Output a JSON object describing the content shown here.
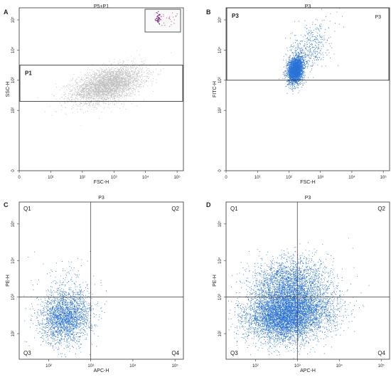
{
  "chart_data": [
    {
      "panel": "A",
      "type": "scatter",
      "title": "P5+P1",
      "xlabel": "FSC-H",
      "ylabel": "SSC-H",
      "x_scale": "log",
      "y_scale": "log",
      "xlim": [
        0,
        5.2
      ],
      "ylim": [
        0,
        5.4
      ],
      "x_ticks": [
        {
          "label": "0",
          "value": 0
        },
        {
          "label": "10¹",
          "value": 1
        },
        {
          "label": "10²",
          "value": 2
        },
        {
          "label": "10³",
          "value": 3
        },
        {
          "label": "10⁴",
          "value": 4
        },
        {
          "label": "10⁵",
          "value": 5
        }
      ],
      "y_ticks": [
        {
          "label": "0",
          "value": 0
        },
        {
          "label": "10²",
          "value": 2
        },
        {
          "label": "10³",
          "value": 3
        },
        {
          "label": "10⁴",
          "value": 4
        },
        {
          "label": "10⁵",
          "value": 5
        }
      ],
      "point_color": "#c0c0c0",
      "gate": {
        "name": "P1",
        "x": [
          0,
          5.2
        ],
        "y": [
          2.3,
          3.5
        ]
      },
      "clusters": [
        {
          "cx": 2.8,
          "cy": 2.85,
          "sx": 0.55,
          "sy": 0.3,
          "n": 3800,
          "rho": 0.45
        }
      ],
      "inset": true
    },
    {
      "panel": "B",
      "type": "scatter",
      "title": "P3",
      "xlabel": "FSC-H",
      "ylabel": "FITC-H",
      "x_scale": "log",
      "y_scale": "log",
      "xlim": [
        0,
        5.2
      ],
      "ylim": [
        0,
        5.4
      ],
      "x_ticks": [
        {
          "label": "0",
          "value": 0
        },
        {
          "label": "10¹",
          "value": 1
        },
        {
          "label": "10²",
          "value": 2
        },
        {
          "label": "10³",
          "value": 3
        },
        {
          "label": "10⁴",
          "value": 4
        },
        {
          "label": "10⁵",
          "value": 5
        }
      ],
      "y_ticks": [
        {
          "label": "0",
          "value": 0
        },
        {
          "label": "10²",
          "value": 2
        },
        {
          "label": "10³",
          "value": 3
        },
        {
          "label": "10⁴",
          "value": 4
        },
        {
          "label": "10⁵",
          "value": 5
        }
      ],
      "point_color": "#2a73d6",
      "gate": {
        "name": "P3",
        "x": [
          0,
          5.2
        ],
        "y": [
          3.0,
          5.4
        ]
      },
      "gate_tag": "P3",
      "clusters": [
        {
          "cx": 2.2,
          "cy": 3.35,
          "sx": 0.12,
          "sy": 0.22,
          "n": 2600,
          "rho": 0.2
        },
        {
          "cx": 2.6,
          "cy": 4.0,
          "sx": 0.35,
          "sy": 0.45,
          "n": 500,
          "rho": 0.5
        }
      ]
    },
    {
      "panel": "C",
      "type": "scatter",
      "title": "P3",
      "xlabel": "APC-H",
      "ylabel": "PE-H",
      "x_scale": "log",
      "y_scale": "log",
      "xlim": [
        1.3,
        5.2
      ],
      "ylim": [
        1.3,
        5.6
      ],
      "x_ticks": [
        {
          "label": "10²",
          "value": 2
        },
        {
          "label": "10³",
          "value": 3
        },
        {
          "label": "10⁴",
          "value": 4
        },
        {
          "label": "10⁵",
          "value": 5
        }
      ],
      "y_ticks": [
        {
          "label": "10²",
          "value": 2
        },
        {
          "label": "10³",
          "value": 3
        },
        {
          "label": "10⁴",
          "value": 4
        },
        {
          "label": "10⁵",
          "value": 5
        }
      ],
      "point_color": "#2a73d6",
      "quadrant_split": {
        "x": 3.0,
        "y": 3.0
      },
      "quadrants": [
        "Q1",
        "Q2",
        "Q3",
        "Q4"
      ],
      "clusters": [
        {
          "cx": 2.4,
          "cy": 2.45,
          "sx": 0.3,
          "sy": 0.35,
          "n": 2300,
          "rho": 0.1
        },
        {
          "cx": 2.5,
          "cy": 3.3,
          "sx": 0.35,
          "sy": 0.4,
          "n": 150,
          "rho": 0.0
        }
      ]
    },
    {
      "panel": "D",
      "type": "scatter",
      "title": "P3",
      "xlabel": "APC-H",
      "ylabel": "PE-H",
      "x_scale": "log",
      "y_scale": "log",
      "xlim": [
        1.3,
        5.2
      ],
      "ylim": [
        1.3,
        5.6
      ],
      "x_ticks": [
        {
          "label": "10²",
          "value": 2
        },
        {
          "label": "10³",
          "value": 3
        },
        {
          "label": "10⁴",
          "value": 4
        },
        {
          "label": "10⁵",
          "value": 5
        }
      ],
      "y_ticks": [
        {
          "label": "10²",
          "value": 2
        },
        {
          "label": "10³",
          "value": 3
        },
        {
          "label": "10⁴",
          "value": 4
        },
        {
          "label": "10⁵",
          "value": 5
        }
      ],
      "point_color": "#2a73d6",
      "quadrant_split": {
        "x": 3.0,
        "y": 3.0
      },
      "quadrants": [
        "Q1",
        "Q2",
        "Q3",
        "Q4"
      ],
      "clusters": [
        {
          "cx": 2.7,
          "cy": 2.5,
          "sx": 0.45,
          "sy": 0.35,
          "n": 5500,
          "rho": 0.1
        },
        {
          "cx": 2.8,
          "cy": 3.4,
          "sx": 0.45,
          "sy": 0.35,
          "n": 2200,
          "rho": 0.1
        },
        {
          "cx": 3.3,
          "cy": 2.7,
          "sx": 0.45,
          "sy": 0.35,
          "n": 900,
          "rho": 0.0
        }
      ]
    }
  ]
}
